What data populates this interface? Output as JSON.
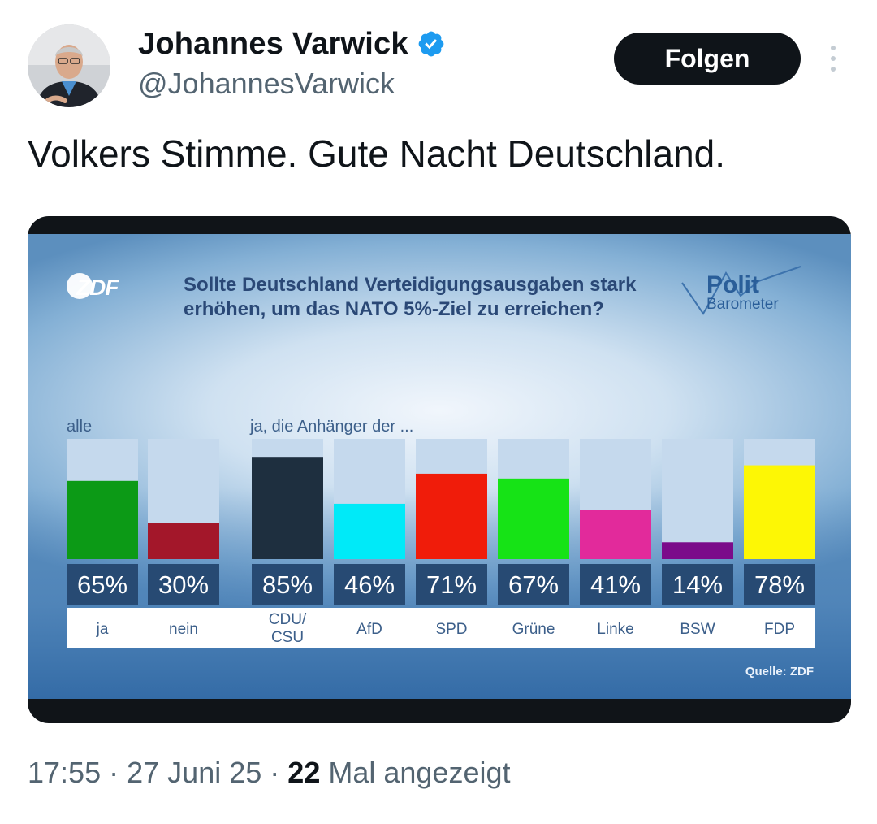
{
  "author": {
    "display_name": "Johannes Varwick",
    "handle": "@JohannesVarwick",
    "verified": true
  },
  "actions": {
    "follow_label": "Folgen"
  },
  "tweet": {
    "text": "Volkers Stimme. Gute Nacht Deutschland."
  },
  "media": {
    "broadcaster_logo_text": "ZDF",
    "program_logo": {
      "line1": "Polit",
      "line2": "Barometer"
    },
    "source": "Quelle: ZDF"
  },
  "chart_data": {
    "type": "bar",
    "title": "Sollte Deutschland Verteidigungsausgaben stark erhöhen, um das NATO 5%-Ziel zu erreichen?",
    "title_lines": [
      "Sollte Deutschland Verteidigungsausgaben stark",
      "erhöhen, um das NATO 5%-Ziel zu erreichen?"
    ],
    "group_labels": [
      "alle",
      "ja, die Anhänger der ..."
    ],
    "ylim": [
      0,
      100
    ],
    "unit": "%",
    "categories": [
      "ja",
      "nein",
      "CDU/ CSU",
      "AfD",
      "SPD",
      "Grüne",
      "Linke",
      "BSW",
      "FDP"
    ],
    "category_lines": [
      [
        "ja"
      ],
      [
        "nein"
      ],
      [
        "CDU/",
        "CSU"
      ],
      [
        "AfD"
      ],
      [
        "SPD"
      ],
      [
        "Grüne"
      ],
      [
        "Linke"
      ],
      [
        "BSW"
      ],
      [
        "FDP"
      ]
    ],
    "values": [
      65,
      30,
      85,
      46,
      71,
      67,
      41,
      14,
      78
    ],
    "value_labels": [
      "65%",
      "30%",
      "85%",
      "46%",
      "71%",
      "67%",
      "41%",
      "14%",
      "78%"
    ],
    "colors": [
      "#0c9a16",
      "#a3172a",
      "#1e2f3f",
      "#00eaf8",
      "#f01c0a",
      "#16e316",
      "#e22a9b",
      "#7b0b8a",
      "#fdf705"
    ],
    "track_color": "#c5d9ed"
  },
  "meta": {
    "time": "17:55",
    "separator": "·",
    "date": "27 Juni 25",
    "views_count": "22",
    "views_label": "Mal angezeigt"
  }
}
